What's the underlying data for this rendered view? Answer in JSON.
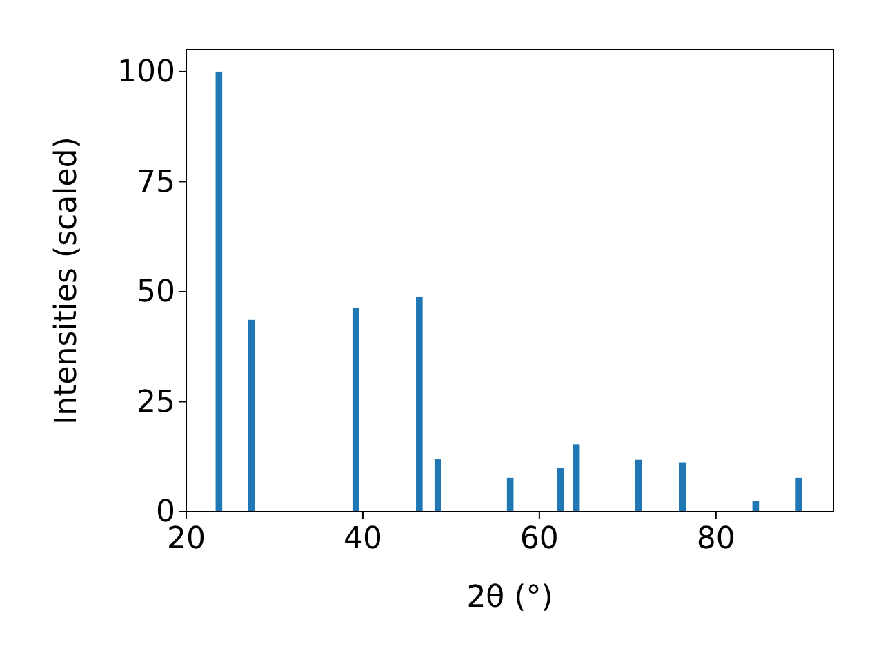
{
  "chart_data": {
    "type": "bar",
    "xlabel": "2θ (°)",
    "ylabel": "Intensities (scaled)",
    "x": [
      23.7,
      27.4,
      39.2,
      46.4,
      48.5,
      56.7,
      62.4,
      64.2,
      71.2,
      76.2,
      84.5,
      89.4
    ],
    "values": [
      100,
      43.6,
      46.4,
      48.9,
      11.9,
      7.7,
      9.9,
      15.3,
      11.8,
      11.2,
      2.5,
      7.7
    ],
    "color": "#1f77b4",
    "xlim": [
      20,
      93.3
    ],
    "ylim": [
      0,
      105
    ],
    "xticks": [
      20,
      40,
      60,
      80
    ],
    "yticks": [
      0,
      25,
      50,
      75,
      100
    ],
    "grid": false
  }
}
